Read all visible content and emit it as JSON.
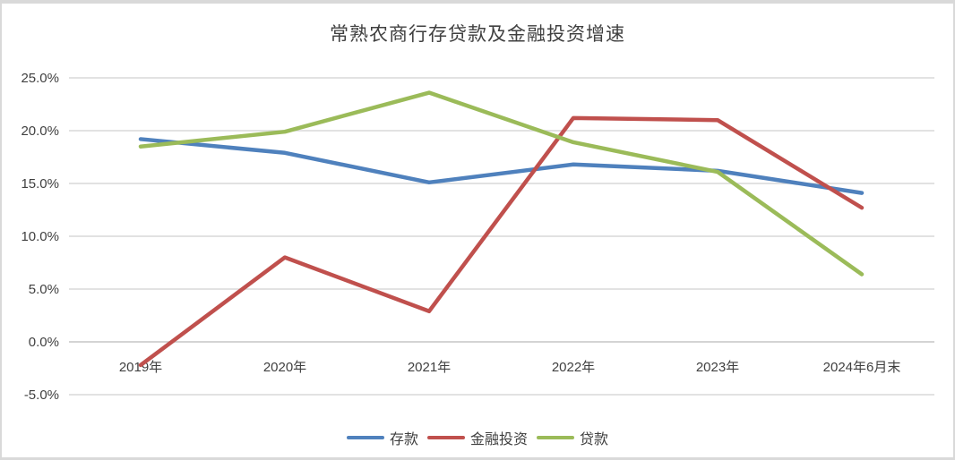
{
  "frame": {
    "border_color": "#d9d9d9",
    "bottom_bar_color": "#0d0d0d",
    "background": "#ffffff"
  },
  "chart_data": {
    "type": "line",
    "title": "常熟农商行存贷款及金融投资增速",
    "categories": [
      "2019年",
      "2020年",
      "2021年",
      "2022年",
      "2023年",
      "2024年6月末"
    ],
    "series": [
      {
        "key": "deposits",
        "name": "存款",
        "color": "#4F81BD",
        "values": [
          19.2,
          17.9,
          15.1,
          16.8,
          16.2,
          14.1
        ]
      },
      {
        "key": "investment",
        "name": "金融投资",
        "color": "#C0504D",
        "values": [
          -2.2,
          8.0,
          2.9,
          21.2,
          21.0,
          12.7
        ]
      },
      {
        "key": "loans",
        "name": "贷款",
        "color": "#9BBB59",
        "values": [
          18.5,
          19.9,
          23.6,
          18.9,
          16.1,
          6.4
        ]
      }
    ],
    "y_axis": {
      "ticks": [
        "25.0%",
        "20.0%",
        "15.0%",
        "10.0%",
        "5.0%",
        "0.0%",
        "-5.0%"
      ],
      "min": -5,
      "max": 25
    },
    "xlabel": "",
    "ylabel": "",
    "grid": true,
    "legend_position": "bottom",
    "text_color": "#404040",
    "gridline_color": "#d9d9d9",
    "axis_line_color": "#c6c6c6"
  }
}
